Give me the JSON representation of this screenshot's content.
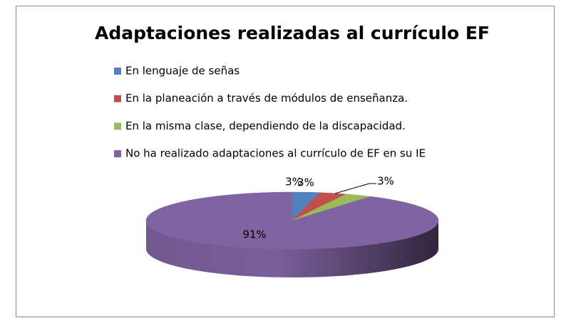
{
  "chart_data": {
    "type": "pie3d",
    "title": "Adaptaciones realizadas al currículo EF",
    "categories": [
      "En lenguaje de señas",
      "En la planeación a través de módulos de enseñanza.",
      "En la misma clase, dependiendo de la discapacidad.",
      "No ha realizado adaptaciones al currículo de EF en su IE"
    ],
    "values": [
      3,
      3,
      3,
      91
    ],
    "value_labels": [
      "3%",
      "3%",
      "3%",
      "91%"
    ],
    "colors": [
      "#4f81bd",
      "#c0504d",
      "#9bbb59",
      "#8064a2"
    ],
    "legend": "top"
  }
}
